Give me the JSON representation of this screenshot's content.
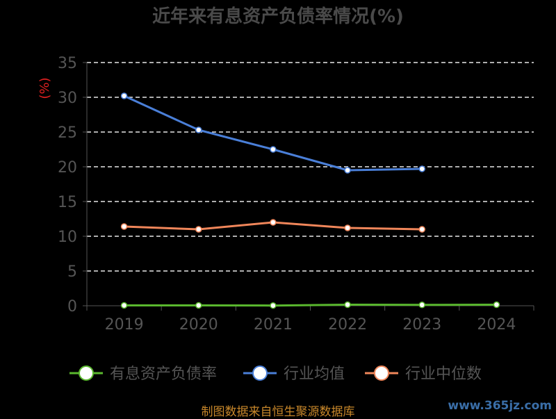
{
  "chart_data": {
    "type": "line",
    "title": "近年来有息资产负债率情况(%)",
    "ylabel": "(%)",
    "categories": [
      "2019",
      "2020",
      "2021",
      "2022",
      "2023",
      "2024"
    ],
    "ylim": [
      0,
      35
    ],
    "yticks": [
      "0",
      "5",
      "10",
      "15",
      "20",
      "25",
      "30",
      "35"
    ],
    "grid": true,
    "legend_position": "bottom",
    "series": [
      {
        "name": "有息资产负债率",
        "color": "#5ab82e",
        "values": [
          0.05,
          0.05,
          0.03,
          0.15,
          0.12,
          0.15
        ]
      },
      {
        "name": "行业均值",
        "color": "#4a7fd8",
        "values": [
          30.2,
          25.3,
          22.5,
          19.5,
          19.7,
          null
        ]
      },
      {
        "name": "行业中位数",
        "color": "#f0865a",
        "values": [
          11.4,
          11.0,
          12.0,
          11.2,
          11.0,
          null
        ]
      }
    ]
  },
  "footer": {
    "source": "制图数据来自恒生聚源数据库",
    "watermark": "www.365jz.com"
  }
}
